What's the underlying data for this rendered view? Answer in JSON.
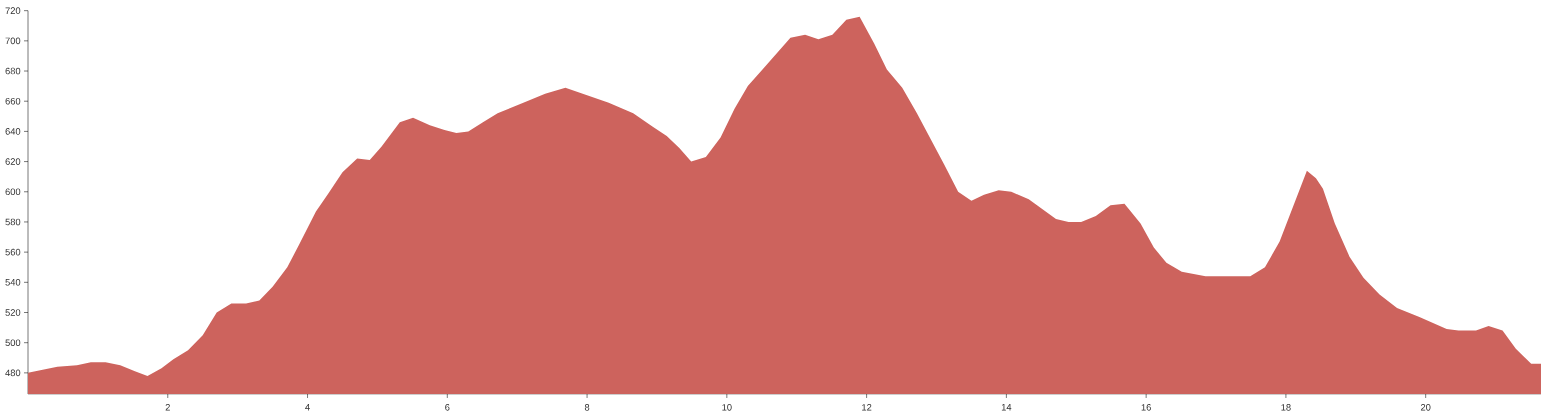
{
  "chart_data": {
    "type": "area",
    "color": "#cd635d",
    "x": [
      0,
      0.21,
      0.42,
      0.7,
      0.9,
      1.11,
      1.32,
      1.53,
      1.71,
      1.91,
      2.08,
      2.29,
      2.5,
      2.7,
      2.91,
      3.12,
      3.31,
      3.5,
      3.71,
      3.88,
      4.12,
      4.3,
      4.5,
      4.71,
      4.89,
      5.06,
      5.32,
      5.51,
      5.75,
      5.96,
      6.13,
      6.3,
      6.51,
      6.72,
      6.93,
      7.14,
      7.4,
      7.69,
      8.0,
      8.31,
      8.66,
      8.94,
      9.14,
      9.32,
      9.49,
      9.7,
      9.91,
      10.11,
      10.3,
      10.51,
      10.91,
      11.12,
      11.31,
      11.51,
      11.71,
      11.9,
      12.11,
      12.29,
      12.51,
      12.72,
      13.11,
      13.31,
      13.5,
      13.68,
      13.89,
      14.07,
      14.32,
      14.71,
      14.89,
      15.07,
      15.28,
      15.49,
      15.69,
      15.92,
      16.11,
      16.29,
      16.51,
      16.85,
      17.49,
      17.7,
      17.91,
      18.3,
      18.43,
      18.53,
      18.7,
      18.91,
      19.11,
      19.34,
      19.59,
      19.91,
      20.3,
      20.47,
      20.72,
      20.9,
      21.1,
      21.29,
      21.51,
      21.65
    ],
    "values": [
      480,
      482,
      484,
      485,
      487,
      487,
      485,
      481,
      478,
      483,
      489,
      495,
      505,
      520,
      526,
      526,
      528,
      537,
      550,
      565,
      587,
      599,
      613,
      622,
      621,
      630,
      646,
      649,
      644,
      641,
      639,
      640,
      646,
      652,
      656,
      660,
      665,
      669,
      664,
      659,
      652,
      643,
      637,
      629,
      620,
      623,
      636,
      655,
      670,
      681,
      702,
      704,
      701,
      704,
      714,
      716,
      698,
      681,
      669,
      652,
      618,
      600,
      594,
      598,
      601,
      600,
      595,
      582,
      580,
      580,
      584,
      591,
      592,
      579,
      563,
      553,
      547,
      544,
      544,
      550,
      567,
      614,
      609,
      602,
      579,
      557,
      543,
      532,
      523,
      517,
      509,
      508,
      508,
      511,
      508,
      496,
      486,
      486
    ],
    "xlim": [
      0,
      21.65
    ],
    "ylim": [
      466,
      720
    ],
    "xticks": [
      2,
      4,
      6,
      8,
      10,
      12,
      14,
      16,
      18,
      20
    ],
    "yticks": [
      480,
      500,
      520,
      540,
      560,
      580,
      600,
      620,
      640,
      660,
      680,
      700,
      720
    ]
  }
}
